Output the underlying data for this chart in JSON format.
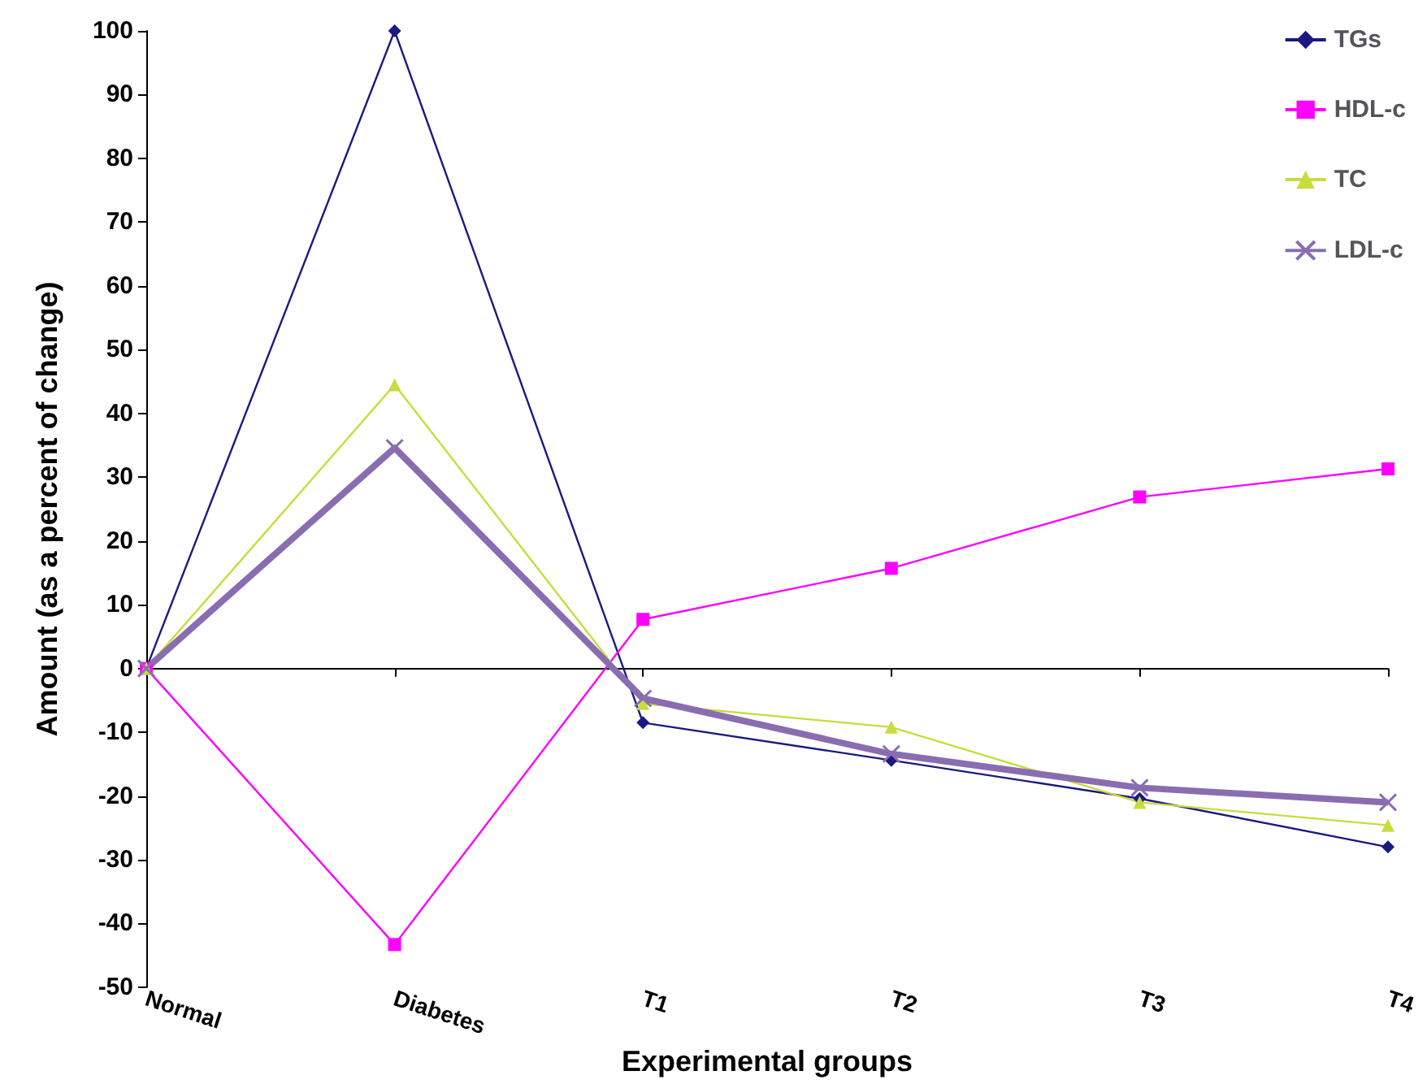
{
  "chart_data": {
    "type": "line",
    "xlabel": "Experimental groups",
    "ylabel": "Amount (as a percent of change)",
    "categories": [
      "Normal",
      "Diabetes",
      "T1",
      "T2",
      "T3",
      "T4"
    ],
    "series": [
      {
        "name": "TGs",
        "color": "#1a1a80",
        "marker": "diamond",
        "values": [
          0,
          100,
          -8.5,
          -14.4,
          -20.4,
          -28
        ]
      },
      {
        "name": "HDL-c",
        "color": "#ff00ff",
        "marker": "square",
        "values": [
          0,
          -43.3,
          7.7,
          15.7,
          26.9,
          31.3
        ]
      },
      {
        "name": "TC",
        "color": "#c8dc3c",
        "marker": "triangle",
        "values": [
          0,
          44.5,
          -5.5,
          -9.2,
          -21,
          -24.6
        ]
      },
      {
        "name": "LDL-c",
        "color": "#8a6db0",
        "marker": "cross",
        "values": [
          0,
          34.6,
          -4.7,
          -13.4,
          -18.7,
          -21
        ]
      }
    ],
    "ylim": [
      -50,
      100
    ],
    "yticks": [
      -50,
      -40,
      -30,
      -20,
      -10,
      0,
      10,
      20,
      30,
      40,
      50,
      60,
      70,
      80,
      90,
      100
    ],
    "legend": "top right"
  }
}
